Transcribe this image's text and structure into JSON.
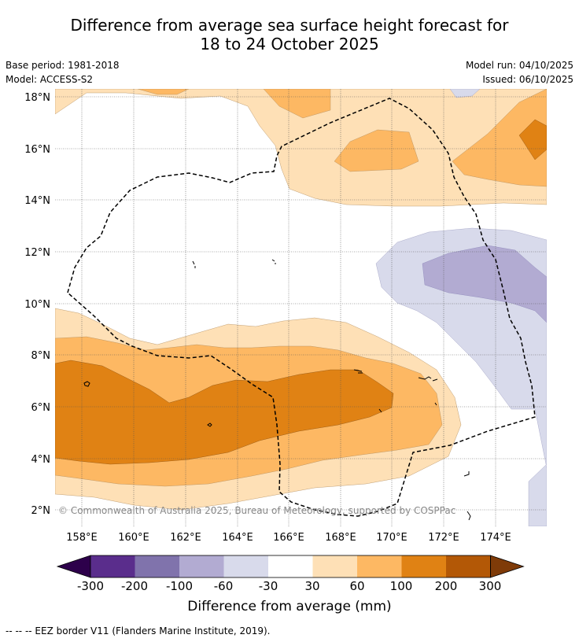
{
  "title_line1": "Difference from average sea surface height forecast for",
  "title_line2": "18 to 24 October 2025",
  "base_period": "Base period: 1981-2018",
  "model": "Model: ACCESS-S2",
  "model_run": "Model run: 04/10/2025",
  "issued": "Issued: 06/10/2025",
  "map": {
    "lon_labels": [
      "158°E",
      "160°E",
      "162°E",
      "164°E",
      "166°E",
      "168°E",
      "170°E",
      "172°E",
      "174°E"
    ],
    "lat_labels": [
      "18°N",
      "16°N",
      "14°N",
      "12°N",
      "10°N",
      "8°N",
      "6°N",
      "4°N",
      "2°N"
    ],
    "copyright": "© Commonwealth of Australia 2025, Bureau of Meteorology, supported by COSPPac"
  },
  "colorbar": {
    "label": "Difference from average (mm)",
    "ticks": [
      "-300",
      "-200",
      "-100",
      "-60",
      "-30",
      "30",
      "60",
      "100",
      "200",
      "300"
    ],
    "colors": [
      "#2d004b",
      "#5a2d8c",
      "#8073ac",
      "#b2abd2",
      "#d8daeb",
      "#ffffff",
      "#fee0b6",
      "#fdb863",
      "#e08214",
      "#b35806",
      "#7f3b08"
    ]
  },
  "footnote": "--  --  -- EEZ border V11 (Flanders Marine Institute, 2019)."
}
